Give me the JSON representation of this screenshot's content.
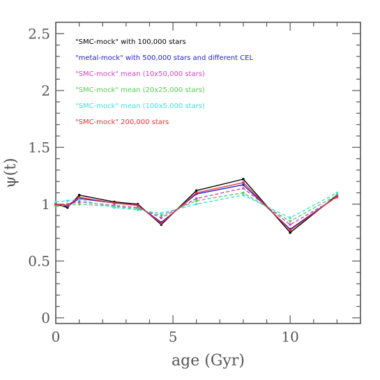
{
  "chart_data": {
    "type": "line",
    "title": "",
    "xlabel": "age (Gyr)",
    "ylabel": "ψ(t)",
    "xlim": [
      0,
      13
    ],
    "ylim": [
      -0.05,
      2.6
    ],
    "xticks": [
      0,
      5,
      10
    ],
    "xtick_labels": [
      "0",
      "5",
      "10"
    ],
    "yticks": [
      0,
      0.5,
      1,
      1.5,
      2,
      2.5
    ],
    "ytick_labels": [
      "0",
      "0.5",
      "1",
      "1.5",
      "2",
      "2.5"
    ],
    "grid": false,
    "legend_position": "top-left",
    "series": [
      {
        "name": "\"SMC-mock\" with 100,000 stars",
        "color": "#000000",
        "dash": "solid",
        "x": [
          0,
          0.5,
          1,
          2.5,
          3.5,
          4.5,
          6,
          8,
          10,
          12
        ],
        "y": [
          1.0,
          0.97,
          1.08,
          1.02,
          1.0,
          0.82,
          1.12,
          1.22,
          0.75,
          1.08
        ]
      },
      {
        "name": "\"metal-mock\" with 500,000 stars and different CEL",
        "color": "#2222cc",
        "dash": "solid",
        "x": [
          0,
          0.5,
          1,
          2.5,
          3.5,
          4.5,
          6,
          8,
          10,
          12
        ],
        "y": [
          1.0,
          0.98,
          1.05,
          1.01,
          0.99,
          0.84,
          1.09,
          1.17,
          0.78,
          1.07
        ]
      },
      {
        "name": "\"SMC-mock\" mean (10x50,000 stars)",
        "color": "#cc44cc",
        "dash": "dashed",
        "x": [
          0,
          0.5,
          1,
          2.5,
          3.5,
          4.5,
          6,
          8,
          10,
          12
        ],
        "y": [
          0.99,
          1.0,
          1.02,
          0.99,
          0.97,
          0.88,
          1.05,
          1.14,
          0.82,
          1.06
        ]
      },
      {
        "name": "\"SMC-mock\" mean (20x25,000 stars)",
        "color": "#55cc55",
        "dash": "dashed",
        "x": [
          0,
          0.5,
          1,
          2.5,
          3.5,
          4.5,
          6,
          8,
          10,
          12
        ],
        "y": [
          0.98,
          0.99,
          1.0,
          0.98,
          0.96,
          0.9,
          1.03,
          1.1,
          0.85,
          1.08
        ]
      },
      {
        "name": "\"SMC-mock\" mean (100x5,000 stars)",
        "color": "#44dddd",
        "dash": "dashed",
        "x": [
          0,
          0.5,
          1,
          2.5,
          3.5,
          4.5,
          6,
          8,
          10,
          12
        ],
        "y": [
          1.02,
          1.03,
          1.04,
          0.97,
          0.95,
          0.92,
          1.0,
          1.08,
          0.88,
          1.1
        ]
      },
      {
        "name": "\"SMC-mock\" 200,000 stars",
        "color": "#dd3333",
        "dash": "solid",
        "x": [
          0,
          0.5,
          1,
          2.5,
          3.5,
          4.5,
          6,
          8,
          10,
          12
        ],
        "y": [
          1.0,
          0.99,
          1.06,
          1.01,
          0.99,
          0.83,
          1.1,
          1.19,
          0.77,
          1.07
        ]
      }
    ]
  }
}
